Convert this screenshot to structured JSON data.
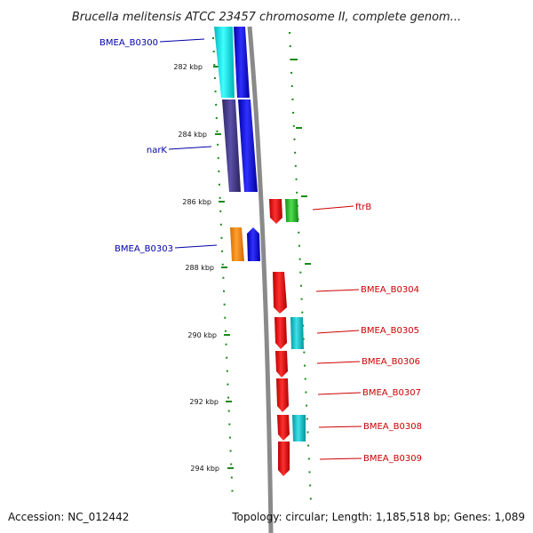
{
  "title": "Brucella melitensis ATCC 23457 chromosome II, complete genom...",
  "footer": {
    "accession": "Accession: NC_012442",
    "topology": "Topology: circular; Length: 1,185,518 bp; Genes: 1,089"
  },
  "ticks": [
    {
      "label": "282 kbp"
    },
    {
      "label": "284 kbp"
    },
    {
      "label": "286 kbp"
    },
    {
      "label": "288 kbp"
    },
    {
      "label": "290 kbp"
    },
    {
      "label": "292 kbp"
    },
    {
      "label": "294 kbp"
    }
  ],
  "gene_labels": {
    "bmea_b0300": "BMEA_B0300",
    "nark": "narK",
    "bmea_b0303": "BMEA_B0303",
    "ftrb": "ftrB",
    "bmea_b0304": "BMEA_B0304",
    "bmea_b0305": "BMEA_B0305",
    "bmea_b0306": "BMEA_B0306",
    "bmea_b0307": "BMEA_B0307",
    "bmea_b0308": "BMEA_B0308",
    "bmea_b0309": "BMEA_B0309"
  },
  "colors": {
    "forward_label": "#0000aa",
    "reverse_label": "#cc0000",
    "tick": "#1a8a1a",
    "backbone": "#8a8a8a",
    "cyan": "#00e5ee",
    "blue": "#0000ee",
    "slate": "#483d8b",
    "orange": "#ff8c00",
    "red": "#ee0000",
    "green": "#22bb22",
    "teal": "#00c5cd"
  }
}
